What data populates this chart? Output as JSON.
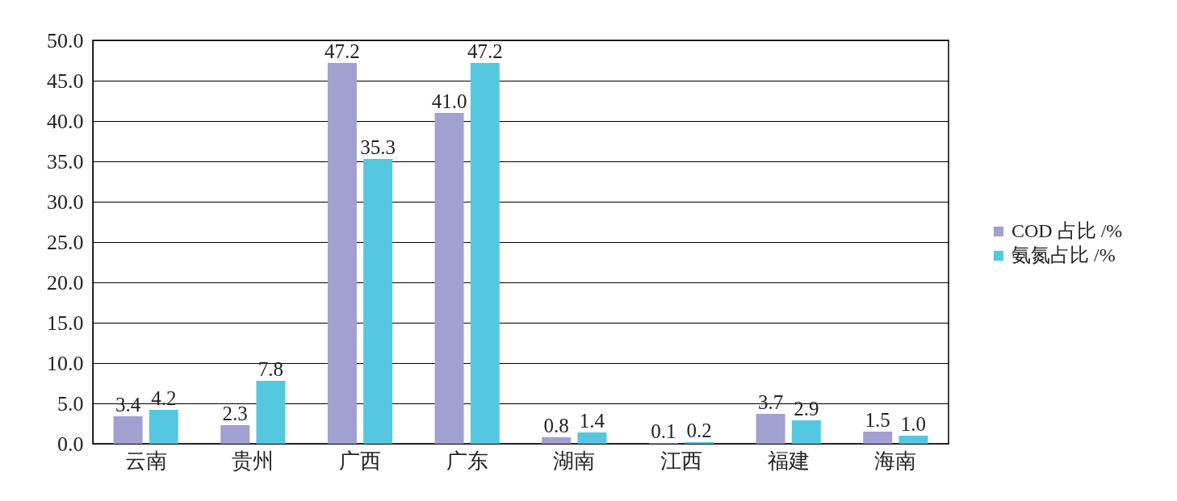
{
  "chart_data": {
    "type": "bar",
    "categories": [
      "云南",
      "贵州",
      "广西",
      "广东",
      "湖南",
      "江西",
      "福建",
      "海南"
    ],
    "series": [
      {
        "name": "COD 占比 /%",
        "color": "#a29fd1",
        "values": [
          3.4,
          2.3,
          47.2,
          41.0,
          0.8,
          0.1,
          3.7,
          1.5
        ],
        "value_labels": [
          "3.4",
          "2.3",
          "47.2",
          "41.0",
          "0.8",
          "0.1",
          "3.7",
          "1.5"
        ]
      },
      {
        "name": "氨氮占比 /%",
        "color": "#55c8e0",
        "values": [
          4.2,
          7.8,
          35.3,
          47.2,
          1.4,
          0.2,
          2.9,
          1.0
        ],
        "value_labels": [
          "4.2",
          "7.8",
          "35.3",
          "47.2",
          "1.4",
          "0.2",
          "2.9",
          "1.0"
        ]
      }
    ],
    "ylim": [
      0,
      50
    ],
    "yticks": [
      {
        "value": 0,
        "label": "0.0"
      },
      {
        "value": 5,
        "label": "5.0"
      },
      {
        "value": 10,
        "label": "10.0"
      },
      {
        "value": 15,
        "label": "15.0"
      },
      {
        "value": 20,
        "label": "20.0"
      },
      {
        "value": 25,
        "label": "25.0"
      },
      {
        "value": 30,
        "label": "30.0"
      },
      {
        "value": 35,
        "label": "35.0"
      },
      {
        "value": 40,
        "label": "40.0"
      },
      {
        "value": 45,
        "label": "45.0"
      },
      {
        "value": 50,
        "label": "50.0"
      }
    ],
    "grid": "y",
    "legend": "right"
  }
}
